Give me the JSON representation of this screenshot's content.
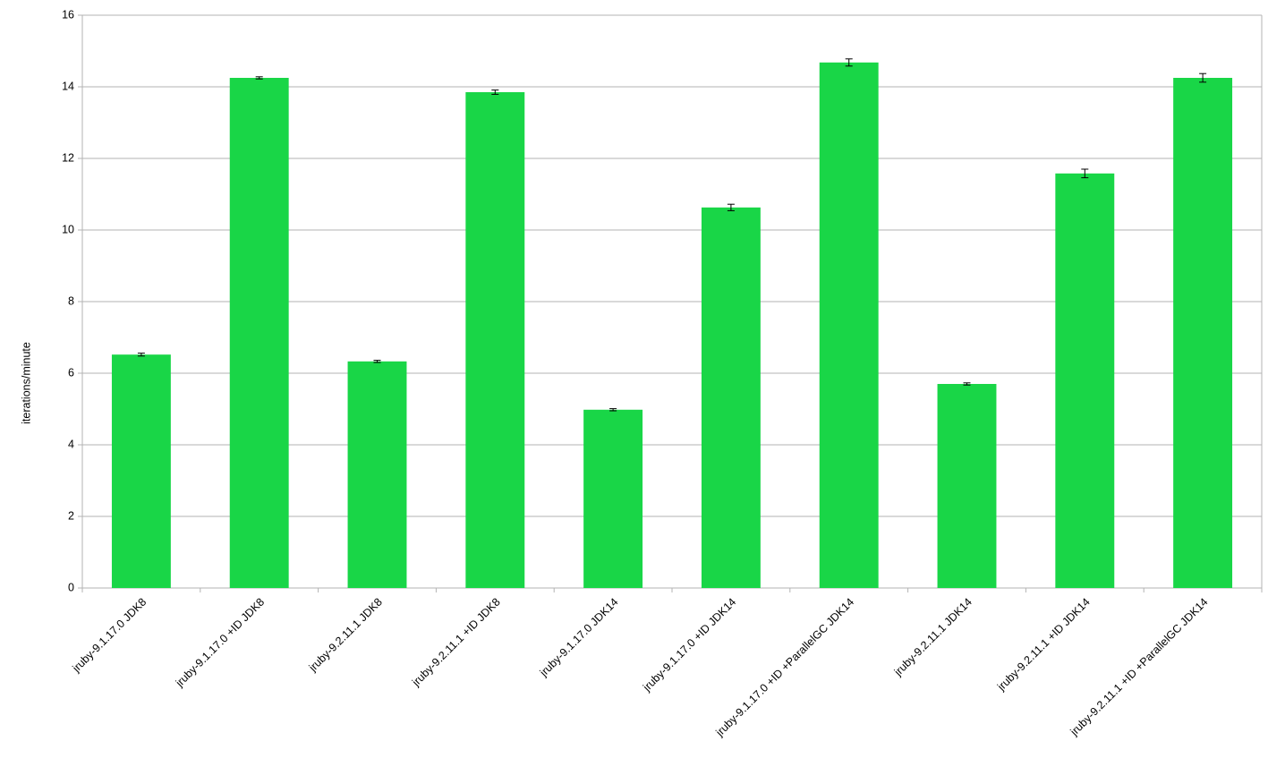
{
  "chart_data": {
    "type": "bar",
    "y_label": "iterations/minute",
    "categories": [
      "jruby-9.1.17.0 JDK8",
      "jruby-9.1.17.0 +ID JDK8",
      "jruby-9.2.11.1 JDK8",
      "jruby-9.2.11.1 +ID JDK8",
      "jruby-9.1.17.0 JDK14",
      "jruby-9.1.17.0 +ID JDK14",
      "jruby-9.1.17.0 +ID +ParallelGC JDK14",
      "jruby-9.2.11.1 JDK14",
      "jruby-9.2.11.1 +ID JDK14",
      "jruby-9.2.11.1 +ID +ParallelGC JDK14"
    ],
    "values": [
      6.52,
      14.25,
      6.33,
      13.85,
      4.98,
      10.63,
      14.68,
      5.7,
      11.58,
      14.25
    ],
    "errors": [
      0.04,
      0.03,
      0.03,
      0.06,
      0.03,
      0.09,
      0.1,
      0.03,
      0.12,
      0.12
    ],
    "color": "#19d647",
    "ylim": [
      0,
      16
    ],
    "yticks": [
      0,
      2,
      4,
      6,
      8,
      10,
      12,
      14,
      16
    ],
    "grid": true
  }
}
